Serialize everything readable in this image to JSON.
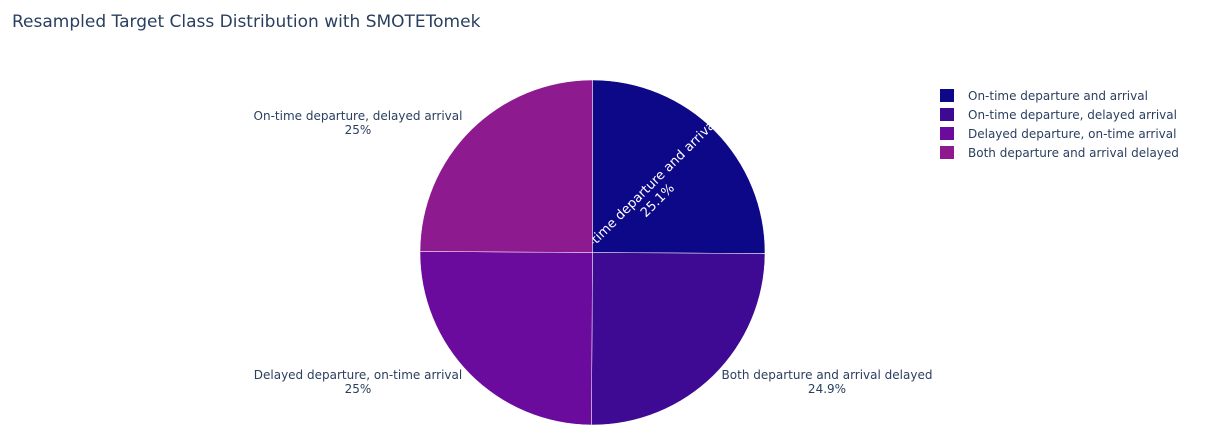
{
  "chart_data": {
    "type": "pie",
    "title": "Resampled Target Class Distribution with SMOTETomek",
    "slices": [
      {
        "label": "On-time departure and arrival",
        "value": 25.1,
        "percent_text": "25.1%",
        "color": "#0d0887"
      },
      {
        "label": "On-time departure, delayed arrival",
        "value": 25.0,
        "percent_text": "25%",
        "color": "#3e0a93"
      },
      {
        "label": "Delayed departure, on-time arrival",
        "value": 25.0,
        "percent_text": "25%",
        "color": "#6a0b9d"
      },
      {
        "label": "Both departure and arrival delayed",
        "value": 24.9,
        "percent_text": "24.9%",
        "color": "#8e1a8f"
      }
    ],
    "legend_position": "top-right"
  }
}
